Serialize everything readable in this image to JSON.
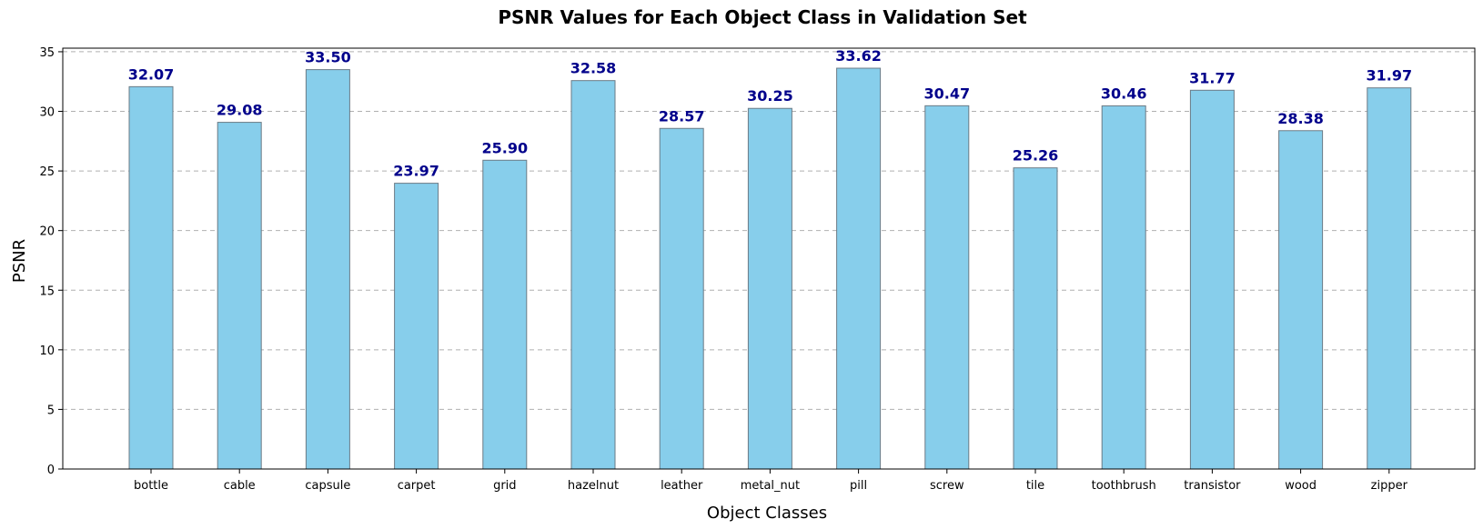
{
  "chart_data": {
    "type": "bar",
    "title": "PSNR Values for Each Object Class in Validation Set",
    "xlabel": "Object Classes",
    "ylabel": "PSNR",
    "categories": [
      "bottle",
      "cable",
      "capsule",
      "carpet",
      "grid",
      "hazelnut",
      "leather",
      "metal_nut",
      "pill",
      "screw",
      "tile",
      "toothbrush",
      "transistor",
      "wood",
      "zipper"
    ],
    "values": [
      32.07,
      29.08,
      33.5,
      23.97,
      25.9,
      32.58,
      28.57,
      30.25,
      33.62,
      30.47,
      25.26,
      30.46,
      31.77,
      28.38,
      31.97
    ],
    "value_labels": [
      "32.07",
      "29.08",
      "33.50",
      "23.97",
      "25.90",
      "32.58",
      "28.57",
      "30.25",
      "33.62",
      "30.47",
      "25.26",
      "30.46",
      "31.77",
      "28.38",
      "31.97"
    ],
    "ylim": [
      0,
      35.3
    ],
    "yticks": [
      0,
      5,
      10,
      15,
      20,
      25,
      30,
      35
    ],
    "ytick_labels": [
      "0",
      "5",
      "10",
      "15",
      "20",
      "25",
      "30",
      "35"
    ],
    "grid": "y-dashed",
    "colors": {
      "bar": "#87ceeb",
      "bar_edge": "#6b7b86",
      "value_label": "#00008b"
    }
  }
}
